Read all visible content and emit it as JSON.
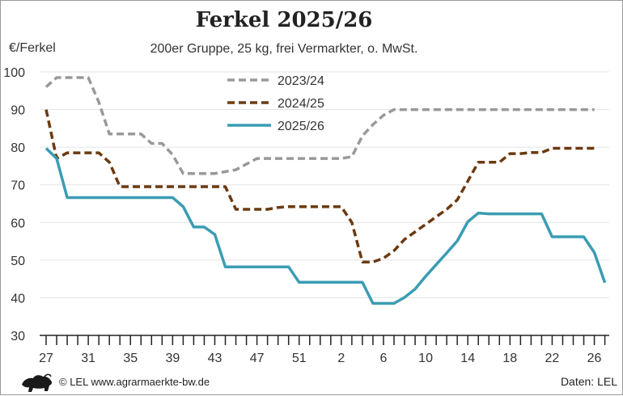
{
  "chart_data": {
    "type": "line",
    "title": "Ferkel 2025/26",
    "subtitle": "200er Gruppe, 25 kg, frei Vermarkter, o. MwSt.",
    "ylabel": "€/Ferkel",
    "ylim": [
      30,
      100
    ],
    "yticks": [
      30,
      40,
      50,
      60,
      70,
      80,
      90,
      100
    ],
    "x_week_labels": [
      "27",
      "31",
      "35",
      "39",
      "43",
      "47",
      "51",
      "2",
      "6",
      "10",
      "14",
      "18",
      "22",
      "26"
    ],
    "grid": "horizontal",
    "legend_position": "top-center",
    "series": [
      {
        "name": "2023/24",
        "color": "#999999",
        "dash": "dashed",
        "values": [
          96,
          98.5,
          98.5,
          98.5,
          98.5,
          92,
          83.5,
          83.5,
          83.5,
          83.5,
          81,
          81,
          78,
          73,
          73,
          73,
          73,
          73.5,
          74,
          75.5,
          77,
          77,
          77,
          77,
          77,
          77,
          77,
          77,
          77,
          77.5,
          83,
          86,
          88.5,
          90,
          90,
          90,
          90,
          90,
          90,
          90,
          90,
          90,
          90,
          90,
          90,
          90,
          90,
          90,
          90,
          90,
          90,
          90,
          90
        ]
      },
      {
        "name": "2024/25",
        "color": "#6b3a10",
        "dash": "dashed",
        "values": [
          90,
          77,
          78.5,
          78.5,
          78.5,
          78.5,
          76,
          69.5,
          69.5,
          69.5,
          69.5,
          69.5,
          69.5,
          69.5,
          69.5,
          69.5,
          69.5,
          69.5,
          63.5,
          63.5,
          63.5,
          63.5,
          64,
          64.2,
          64.2,
          64.2,
          64.2,
          64.2,
          64.2,
          60,
          49.5,
          49.5,
          50.5,
          52.5,
          55.5,
          57.5,
          59.5,
          61.5,
          63.5,
          66,
          71,
          76,
          76,
          76,
          78.3,
          78.3,
          78.6,
          78.6,
          79.7,
          79.7,
          79.7,
          79.7,
          79.7
        ]
      },
      {
        "name": "2025/26",
        "color": "#3a9db3",
        "dash": "solid",
        "values": [
          79.7,
          77,
          66.6,
          66.6,
          66.6,
          66.6,
          66.6,
          66.6,
          66.6,
          66.6,
          66.6,
          66.6,
          66.6,
          64.2,
          58.8,
          58.8,
          56.8,
          48.2,
          48.2,
          48.2,
          48.2,
          48.2,
          48.2,
          48.2,
          44.1,
          44.1,
          44.1,
          44.1,
          44.1,
          44.1,
          44.1,
          38.5,
          38.5,
          38.5,
          40.1,
          42.3,
          45.7,
          48.8,
          51.9,
          55.1,
          60.2,
          62.5,
          62.3,
          62.3,
          62.3,
          62.3,
          62.3,
          62.3,
          56.2,
          56.2,
          56.2,
          56.2,
          52,
          44
        ]
      }
    ]
  },
  "footer": {
    "copyright": "© LEL www.agrarmaerkte-bw.de",
    "source": "Daten: LEL",
    "logo_icon": "lion-icon"
  }
}
